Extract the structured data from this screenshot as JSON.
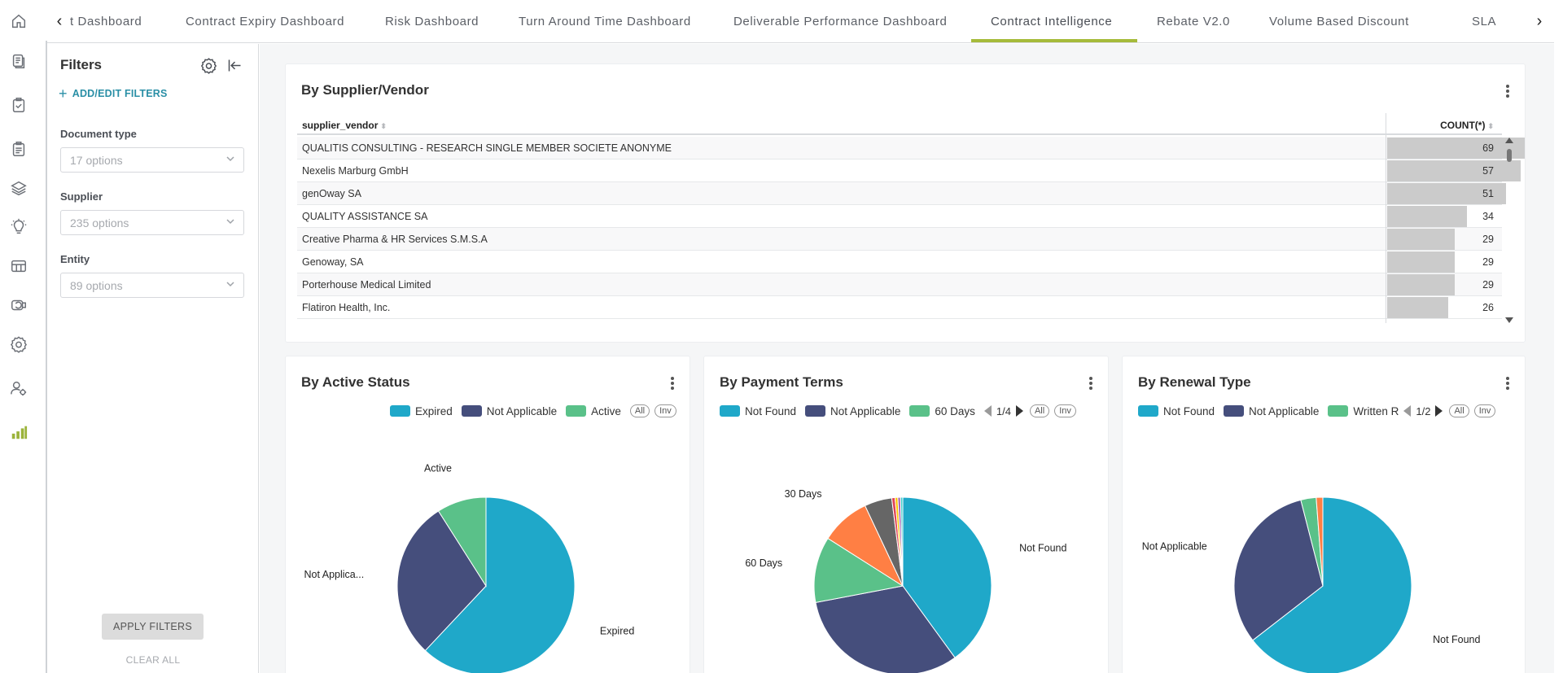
{
  "tabs": {
    "items": [
      {
        "label": "t Dashboard"
      },
      {
        "label": "Contract Expiry Dashboard"
      },
      {
        "label": "Risk Dashboard"
      },
      {
        "label": "Turn Around Time Dashboard"
      },
      {
        "label": "Deliverable Performance Dashboard"
      },
      {
        "label": "Contract Intelligence"
      },
      {
        "label": "Rebate V2.0"
      },
      {
        "label": "Volume Based Discount"
      },
      {
        "label": "SLA"
      }
    ],
    "active": "Contract Intelligence",
    "accent_color": "#a6bb3b"
  },
  "rail": {
    "icons": [
      "home-icon",
      "documents-icon",
      "clipboard-check-icon",
      "clipboard-icon",
      "layers-icon",
      "lightbulb-icon",
      "table-layout-icon",
      "handshake-icon",
      "settings-icon",
      "user-settings-icon",
      "bar-chart-icon"
    ]
  },
  "filters": {
    "title": "Filters",
    "add_edit": "ADD/EDIT FILTERS",
    "document_type": {
      "label": "Document type",
      "placeholder": "17 options"
    },
    "supplier": {
      "label": "Supplier",
      "placeholder": "235 options"
    },
    "entity": {
      "label": "Entity",
      "placeholder": "89 options"
    },
    "apply": "APPLY FILTERS",
    "clear": "CLEAR ALL"
  },
  "supplier_table": {
    "title": "By Supplier/Vendor",
    "columns": [
      "supplier_vendor",
      "COUNT(*)"
    ],
    "max": 69,
    "rows": [
      {
        "name": "QUALITIS CONSULTING - RESEARCH SINGLE MEMBER SOCIETE ANONYME",
        "count": 69
      },
      {
        "name": "Nexelis Marburg GmbH",
        "count": 57
      },
      {
        "name": "genOway SA",
        "count": 51
      },
      {
        "name": "QUALITY ASSISTANCE SA",
        "count": 34
      },
      {
        "name": "Creative Pharma & HR Services S.M.S.A",
        "count": 29
      },
      {
        "name": "Genoway, SA",
        "count": 29
      },
      {
        "name": "Porterhouse Medical Limited",
        "count": 29
      },
      {
        "name": "Flatiron Health, Inc.",
        "count": 26
      }
    ]
  },
  "chart_data": [
    {
      "type": "pie",
      "title": "By Active Status",
      "legend": [
        "Expired",
        "Not Applicable",
        "Active"
      ],
      "buttons": [
        "All",
        "Inv"
      ],
      "slices": [
        {
          "name": "Expired",
          "value": 62,
          "color": "#1fa8c9",
          "label": "Expired"
        },
        {
          "name": "Not Applicable",
          "value": 29,
          "color": "#454e7c",
          "label": "Not Applica..."
        },
        {
          "name": "Active",
          "value": 9,
          "color": "#5ac189",
          "label": "Active"
        }
      ]
    },
    {
      "type": "pie",
      "title": "By Payment Terms",
      "legend": [
        "Not Found",
        "Not Applicable",
        "60 Days"
      ],
      "page": "1/4",
      "buttons": [
        "All",
        "Inv"
      ],
      "slices": [
        {
          "name": "Not Found",
          "value": 40,
          "color": "#1fa8c9",
          "label": "Not Found"
        },
        {
          "name": "Not Applicable",
          "value": 32,
          "color": "#454e7c",
          "label": "Not Applicable"
        },
        {
          "name": "60 Days",
          "value": 12,
          "color": "#5ac189",
          "label": "60 Days"
        },
        {
          "name": "30 Days",
          "value": 9,
          "color": "#ff7f44",
          "label": "30 Days"
        },
        {
          "name": "",
          "value": 5,
          "color": "#666666",
          "label": ""
        },
        {
          "name": "",
          "value": 0.6,
          "color": "#e04355",
          "label": ""
        },
        {
          "name": "",
          "value": 0.5,
          "color": "#fcc700",
          "label": ""
        },
        {
          "name": "",
          "value": 0.5,
          "color": "#a868b7",
          "label": ""
        },
        {
          "name": "",
          "value": 0.4,
          "color": "#3ccccb",
          "label": ""
        }
      ]
    },
    {
      "type": "pie",
      "title": "By Renewal Type",
      "legend": [
        "Not Found",
        "Not Applicable",
        "Written R"
      ],
      "page": "1/2",
      "buttons": [
        "All",
        "Inv"
      ],
      "slices": [
        {
          "name": "Not Found",
          "value": 64.5,
          "color": "#1fa8c9",
          "label": "Not Found"
        },
        {
          "name": "Not Applicable",
          "value": 31.5,
          "color": "#454e7c",
          "label": "Not Applicable"
        },
        {
          "name": "Written R",
          "value": 2.8,
          "color": "#5ac189",
          "label": ""
        },
        {
          "name": "",
          "value": 1.2,
          "color": "#ff7f44",
          "label": ""
        }
      ]
    }
  ]
}
